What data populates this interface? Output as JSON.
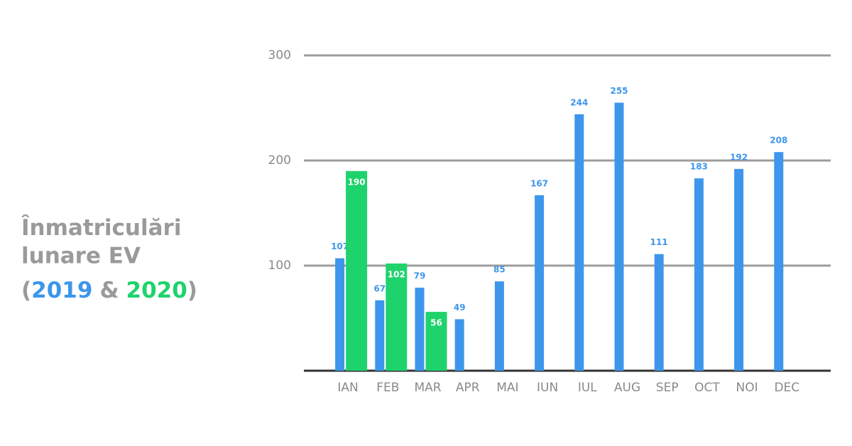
{
  "chart_data": {
    "type": "bar",
    "title": "Înmatriculări lunare EV",
    "legend_open": "(",
    "legend_joiner": "&",
    "legend_close": ")",
    "categories": [
      "IAN",
      "FEB",
      "MAR",
      "APR",
      "MAI",
      "IUN",
      "IUL",
      "AUG",
      "SEP",
      "OCT",
      "NOI",
      "DEC"
    ],
    "series": [
      {
        "name": "2019",
        "color": "#3d96ec",
        "values": [
          107,
          67,
          79,
          49,
          85,
          167,
          244,
          255,
          111,
          183,
          192,
          208
        ]
      },
      {
        "name": "2020",
        "color": "#1ed36c",
        "values": [
          190,
          102,
          56,
          null,
          null,
          null,
          null,
          null,
          null,
          null,
          null,
          null
        ]
      }
    ],
    "ylim": [
      0,
      300
    ],
    "yticks": [
      100,
      200,
      300
    ],
    "grid": true
  }
}
